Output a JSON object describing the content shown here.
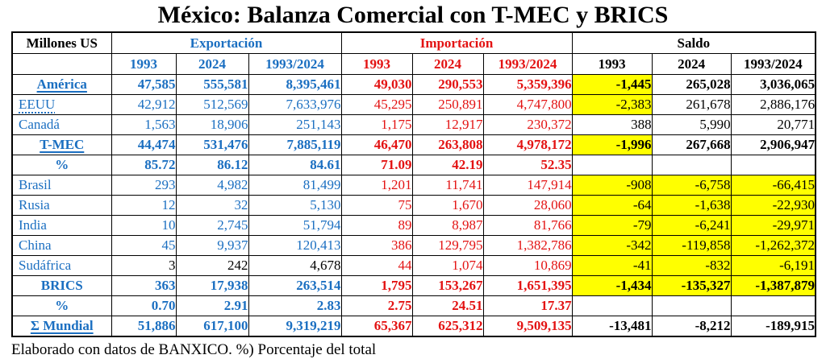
{
  "title": "México: Balanza Comercial con T-MEC y BRICS",
  "footer": "Elaborado con datos de BANXICO. %) Porcentaje del total",
  "colors": {
    "blue": "#1B6FC1",
    "red": "#E31212",
    "yellow": "#FFFF00",
    "black": "#000000"
  },
  "table": {
    "corner_label": "Millones US",
    "groups": [
      {
        "label": "Exportación",
        "color": "blue"
      },
      {
        "label": "Importación",
        "color": "red"
      },
      {
        "label": "Saldo",
        "color": "black"
      }
    ],
    "year_headers": [
      "1993",
      "2024",
      "1993/2024",
      "1993",
      "2024",
      "1993/2024",
      "1993",
      "2024",
      "1993/2024"
    ],
    "rows": [
      {
        "label": "América",
        "align": "center",
        "bold": true,
        "underline": "solid",
        "export_color": "blue",
        "cells": [
          "47,585",
          "555,581",
          "8,395,461",
          "49,030",
          "290,553",
          "5,359,396",
          "-1,445",
          "265,028",
          "3,036,065"
        ],
        "yellow": [
          6
        ]
      },
      {
        "label": "EEUU",
        "align": "left",
        "bold": false,
        "underline": "dotted",
        "export_color": "blue",
        "cells": [
          "42,912",
          "512,569",
          "7,633,976",
          "45,295",
          "250,891",
          "4,747,800",
          "-2,383",
          "261,678",
          "2,886,176"
        ],
        "yellow": [
          6
        ]
      },
      {
        "label": "Canadá",
        "align": "left",
        "bold": false,
        "underline": "none",
        "export_color": "blue",
        "cells": [
          "1,563",
          "18,906",
          "251,143",
          "1,175",
          "12,917",
          "230,372",
          "388",
          "5,990",
          "20,771"
        ],
        "yellow": []
      },
      {
        "label": "T-MEC",
        "align": "center",
        "bold": true,
        "underline": "solid",
        "export_color": "blue",
        "cells": [
          "44,474",
          "531,476",
          "7,885,119",
          "46,470",
          "263,808",
          "4,978,172",
          "-1,996",
          "267,668",
          "2,906,947"
        ],
        "yellow": [
          6
        ]
      },
      {
        "label": "%",
        "align": "center",
        "bold": true,
        "underline": "none",
        "export_color": "blue",
        "cells": [
          "85.72",
          "86.12",
          "84.61",
          "71.09",
          "42.19",
          "52.35",
          "",
          "",
          ""
        ],
        "yellow": []
      },
      {
        "label": "Brasil",
        "align": "left",
        "bold": false,
        "underline": "none",
        "export_color": "blue",
        "cells": [
          "293",
          "4,982",
          "81,499",
          "1,201",
          "11,741",
          "147,914",
          "-908",
          "-6,758",
          "-66,415"
        ],
        "yellow": [
          6,
          7,
          8
        ]
      },
      {
        "label": "Rusia",
        "align": "left",
        "bold": false,
        "underline": "none",
        "export_color": "blue",
        "cells": [
          "12",
          "32",
          "5,130",
          "75",
          "1,670",
          "28,060",
          "-64",
          "-1,638",
          "-22,930"
        ],
        "yellow": [
          6,
          7,
          8
        ]
      },
      {
        "label": "India",
        "align": "left",
        "bold": false,
        "underline": "none",
        "export_color": "blue",
        "cells": [
          "10",
          "2,745",
          "51,794",
          "89",
          "8,987",
          "81,766",
          "-79",
          "-6,241",
          "-29,971"
        ],
        "yellow": [
          6,
          7,
          8
        ]
      },
      {
        "label": "China",
        "align": "left",
        "bold": false,
        "underline": "none",
        "export_color": "blue",
        "cells": [
          "45",
          "9,937",
          "120,413",
          "386",
          "129,795",
          "1,382,786",
          "-342",
          "-119,858",
          "-1,262,372"
        ],
        "yellow": [
          6,
          7,
          8
        ]
      },
      {
        "label": "Sudáfrica",
        "align": "left",
        "bold": false,
        "underline": "none",
        "export_color": "black",
        "cells": [
          "3",
          "242",
          "4,678",
          "44",
          "1,074",
          "10,869",
          "-41",
          "-832",
          "-6,191"
        ],
        "yellow": [
          6,
          7,
          8
        ]
      },
      {
        "label": "BRICS",
        "align": "center",
        "bold": true,
        "underline": "none",
        "export_color": "blue",
        "cells": [
          "363",
          "17,938",
          "263,514",
          "1,795",
          "153,267",
          "1,651,395",
          "-1,434",
          "-135,327",
          "-1,387,879"
        ],
        "yellow": [
          6,
          7,
          8
        ]
      },
      {
        "label": "%",
        "align": "center",
        "bold": true,
        "underline": "none",
        "export_color": "blue",
        "cells": [
          "0.70",
          "2.91",
          "2.83",
          "2.75",
          "24.51",
          "17.37",
          "",
          "",
          ""
        ],
        "yellow": []
      },
      {
        "label": "Σ Mundial",
        "align": "center",
        "bold": true,
        "underline": "solid",
        "export_color": "blue",
        "cells": [
          "51,886",
          "617,100",
          "9,319,219",
          "65,367",
          "625,312",
          "9,509,135",
          "-13,481",
          "-8,212",
          "-189,915"
        ],
        "yellow": []
      }
    ]
  }
}
